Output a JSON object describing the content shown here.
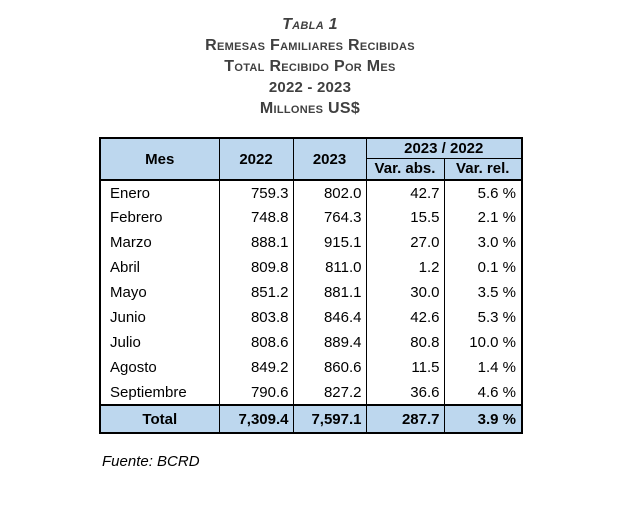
{
  "header_block": {
    "titles": [
      "Tabla 1",
      "Remesas Familiares Recibidas",
      "Total Recibido Por Mes",
      "2022 - 2023",
      "Millones US$"
    ]
  },
  "table": {
    "header": {
      "mes": "Mes",
      "y2022": "2022",
      "y2023": "2023",
      "comparison": "2023 / 2022",
      "var_abs": "Var. abs.",
      "var_rel": "Var. rel."
    },
    "rows": [
      {
        "mes": "Enero",
        "y2022": "759.3",
        "y2023": "802.0",
        "var_abs": "42.7",
        "var_rel": "5.6 %"
      },
      {
        "mes": "Febrero",
        "y2022": "748.8",
        "y2023": "764.3",
        "var_abs": "15.5",
        "var_rel": "2.1 %"
      },
      {
        "mes": "Marzo",
        "y2022": "888.1",
        "y2023": "915.1",
        "var_abs": "27.0",
        "var_rel": "3.0 %"
      },
      {
        "mes": "Abril",
        "y2022": "809.8",
        "y2023": "811.0",
        "var_abs": "1.2",
        "var_rel": "0.1 %"
      },
      {
        "mes": "Mayo",
        "y2022": "851.2",
        "y2023": "881.1",
        "var_abs": "30.0",
        "var_rel": "3.5 %"
      },
      {
        "mes": "Junio",
        "y2022": "803.8",
        "y2023": "846.4",
        "var_abs": "42.6",
        "var_rel": "5.3 %"
      },
      {
        "mes": "Julio",
        "y2022": "808.6",
        "y2023": "889.4",
        "var_abs": "80.8",
        "var_rel": "10.0 %"
      },
      {
        "mes": "Agosto",
        "y2022": "849.2",
        "y2023": "860.6",
        "var_abs": "11.5",
        "var_rel": "1.4 %"
      },
      {
        "mes": "Septiembre",
        "y2022": "790.6",
        "y2023": "827.2",
        "var_abs": "36.6",
        "var_rel": "4.6 %"
      }
    ],
    "total": {
      "label": "Total",
      "y2022": "7,309.4",
      "y2023": "7,597.1",
      "var_abs": "287.7",
      "var_rel": "3.9 %"
    }
  },
  "footer": {
    "source": "Fuente: BCRD"
  },
  "colors": {
    "header_bg": "#BDD7EE",
    "title_text": "#404040",
    "border": "#000000"
  },
  "chart_data": {
    "type": "table",
    "title": "Tabla 1 - Remesas familiares recibidas, Total recibido por mes, 2022 - 2023, Millones US$",
    "columns": [
      "Mes",
      "2022",
      "2023",
      "Var. abs.",
      "Var. rel. (%)"
    ],
    "rows": [
      [
        "Enero",
        759.3,
        802.0,
        42.7,
        5.6
      ],
      [
        "Febrero",
        748.8,
        764.3,
        15.5,
        2.1
      ],
      [
        "Marzo",
        888.1,
        915.1,
        27.0,
        3.0
      ],
      [
        "Abril",
        809.8,
        811.0,
        1.2,
        0.1
      ],
      [
        "Mayo",
        851.2,
        881.1,
        30.0,
        3.5
      ],
      [
        "Junio",
        803.8,
        846.4,
        42.6,
        5.3
      ],
      [
        "Julio",
        808.6,
        889.4,
        80.8,
        10.0
      ],
      [
        "Agosto",
        849.2,
        860.6,
        11.5,
        1.4
      ],
      [
        "Septiembre",
        790.6,
        827.2,
        36.6,
        4.6
      ],
      [
        "Total",
        7309.4,
        7597.1,
        287.7,
        3.9
      ]
    ]
  }
}
